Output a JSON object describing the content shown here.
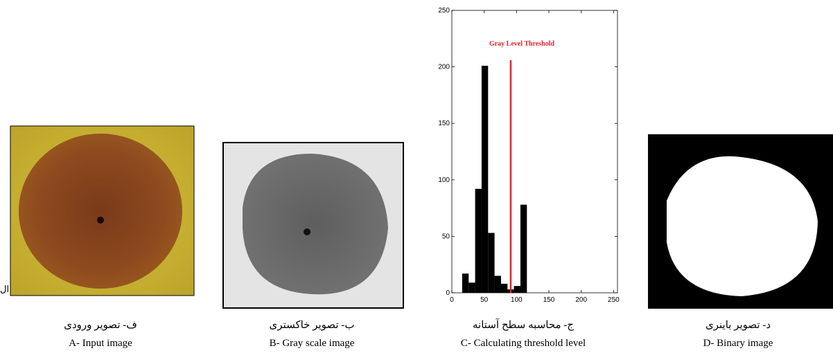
{
  "panels": [
    {
      "caption_fa": "ف- تصویر ورودی",
      "caption_en": "A- Input image"
    },
    {
      "caption_fa": "ب- تصویر خاکستری",
      "caption_en": "B- Gray scale image"
    },
    {
      "caption_fa": "ج- محاسبه سطح آستانه",
      "caption_en": "C- Calculating threshold level"
    },
    {
      "caption_fa": "د- تصویر باینری",
      "caption_en": "D- Binary image"
    }
  ],
  "stray_text": "ال",
  "chart_data": {
    "type": "histogram",
    "bins": [
      16,
      26,
      36,
      46,
      56,
      66,
      76,
      86,
      96,
      106,
      116
    ],
    "counts": [
      17,
      9,
      92,
      201,
      53,
      15,
      8,
      3,
      6,
      78
    ],
    "color": "#000000",
    "xlim": [
      0,
      256
    ],
    "xticks": [
      0,
      50,
      100,
      150,
      200,
      250
    ],
    "ylim": [
      0,
      250
    ],
    "yticks": [
      0,
      50,
      100,
      150,
      200,
      250
    ],
    "threshold": 91,
    "threshold_color": "#e8202a",
    "annotation": "Gray Level Threshold"
  }
}
